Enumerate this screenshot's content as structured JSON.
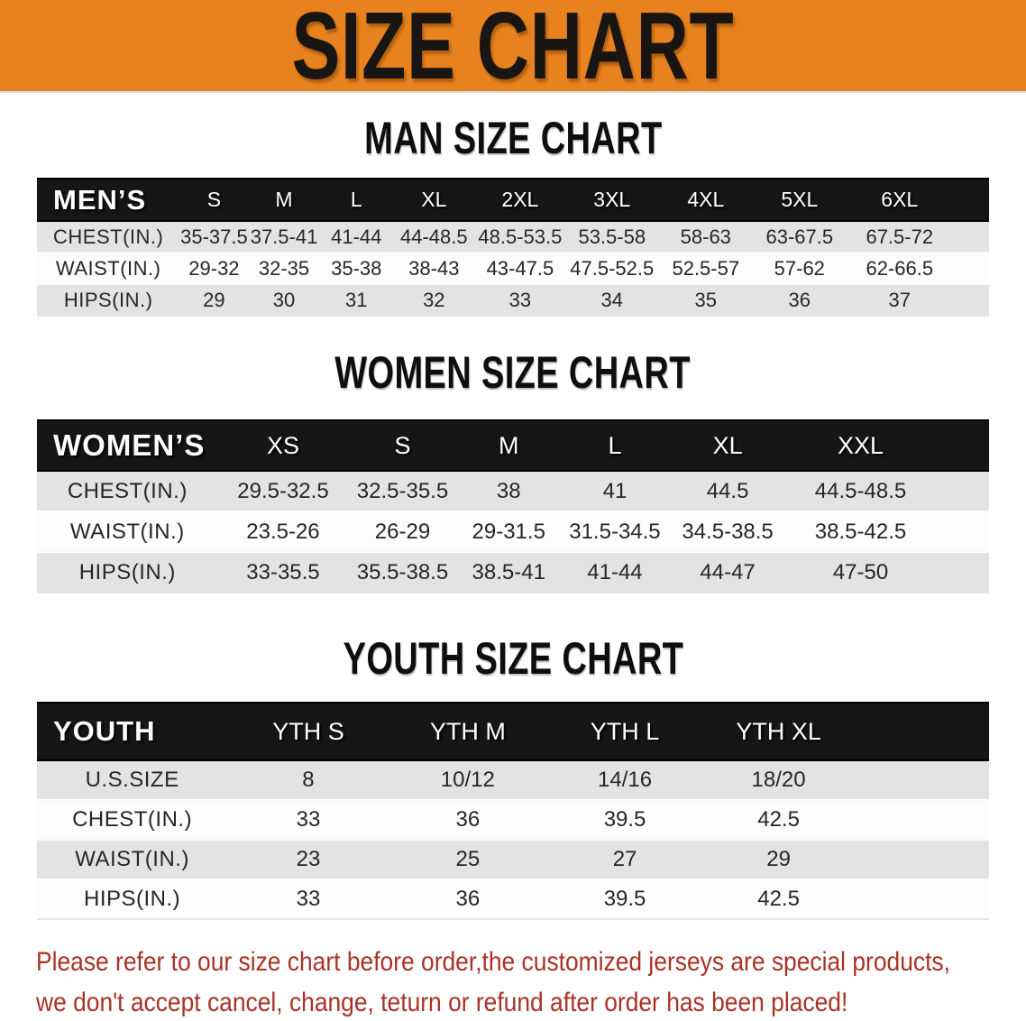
{
  "banner": {
    "title": "SIZE CHART"
  },
  "colors": {
    "banner_bg": "#E8821E",
    "table_header_bg": "#161616",
    "row_gray": "#E3E3E3",
    "row_white": "#FDFDFD",
    "disclaimer_red": "#A93226"
  },
  "sections": [
    {
      "key": "men",
      "title": "MAN SIZE CHART",
      "corner_label": "MEN’S",
      "columns": [
        "S",
        "M",
        "L",
        "XL",
        "2XL",
        "3XL",
        "4XL",
        "5XL",
        "6XL"
      ],
      "rows": [
        {
          "label": "CHEST(IN.)",
          "values": [
            "35-37.5",
            "37.5-41",
            "41-44",
            "44-48.5",
            "48.5-53.5",
            "53.5-58",
            "58-63",
            "63-67.5",
            "67.5-72"
          ]
        },
        {
          "label": "WAIST(IN.)",
          "values": [
            "29-32",
            "32-35",
            "35-38",
            "38-43",
            "43-47.5",
            "47.5-52.5",
            "52.5-57",
            "57-62",
            "62-66.5"
          ]
        },
        {
          "label": "HIPS(IN.)",
          "values": [
            "29",
            "30",
            "31",
            "32",
            "33",
            "34",
            "35",
            "36",
            "37"
          ]
        }
      ]
    },
    {
      "key": "women",
      "title": "WOMEN SIZE CHART",
      "corner_label": "WOMEN’S",
      "columns": [
        "XS",
        "S",
        "M",
        "L",
        "XL",
        "XXL"
      ],
      "rows": [
        {
          "label": "CHEST(IN.)",
          "values": [
            "29.5-32.5",
            "32.5-35.5",
            "38",
            "41",
            "44.5",
            "44.5-48.5"
          ]
        },
        {
          "label": "WAIST(IN.)",
          "values": [
            "23.5-26",
            "26-29",
            "29-31.5",
            "31.5-34.5",
            "34.5-38.5",
            "38.5-42.5"
          ]
        },
        {
          "label": "HIPS(IN.)",
          "values": [
            "33-35.5",
            "35.5-38.5",
            "38.5-41",
            "41-44",
            "44-47",
            "47-50"
          ]
        }
      ]
    },
    {
      "key": "youth",
      "title": "YOUTH SIZE CHART",
      "corner_label": "YOUTH",
      "columns": [
        "YTH S",
        "YTH M",
        "YTH L",
        "YTH XL"
      ],
      "rows": [
        {
          "label": "U.S.SIZE",
          "values": [
            "8",
            "10/12",
            "14/16",
            "18/20"
          ]
        },
        {
          "label": "CHEST(IN.)",
          "values": [
            "33",
            "36",
            "39.5",
            "42.5"
          ]
        },
        {
          "label": "WAIST(IN.)",
          "values": [
            "23",
            "25",
            "27",
            "29"
          ]
        },
        {
          "label": "HIPS(IN.)",
          "values": [
            "33",
            "36",
            "39.5",
            "42.5"
          ]
        }
      ]
    }
  ],
  "disclaimer": {
    "line1": "Please refer to our size chart before order,the customized jerseys are special products,",
    "line2": "we don't accept cancel, change, teturn or refund after order has been placed!"
  }
}
